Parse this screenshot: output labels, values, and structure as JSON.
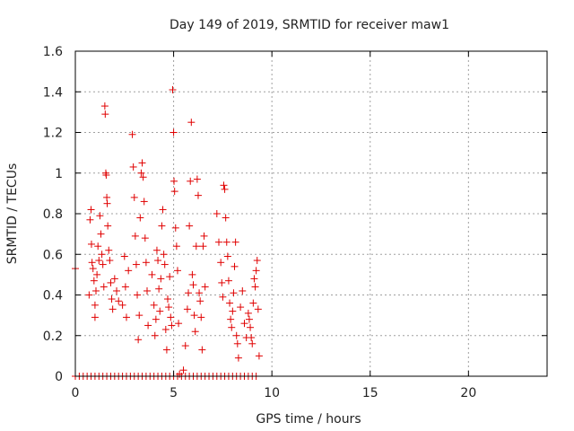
{
  "chart_data": {
    "type": "scatter",
    "title": "Day 149 of 2019, SRMTID for receiver maw1",
    "xlabel": "GPS time / hours",
    "ylabel": "SRMTID / TECUs",
    "xlim": [
      0,
      24
    ],
    "ylim": [
      0,
      1.6
    ],
    "xticks": [
      0,
      5,
      10,
      15,
      20
    ],
    "yticks": [
      0,
      0.2,
      0.4,
      0.6,
      0.8,
      1,
      1.2,
      1.4,
      1.6
    ],
    "xtick_labels": [
      "0",
      "5",
      "10",
      "15",
      "20"
    ],
    "ytick_labels": [
      "0",
      "0.2",
      "0.4",
      "0.6",
      "0.8",
      "1",
      "1.2",
      "1.4",
      "1.6"
    ],
    "grid": true,
    "marker": "+",
    "color": "#e00000",
    "series": [
      {
        "points": [
          [
            0.0,
            0.53
          ],
          [
            0.7,
            0.4
          ],
          [
            0.75,
            0.77
          ],
          [
            0.8,
            0.82
          ],
          [
            0.82,
            0.65
          ],
          [
            0.85,
            0.56
          ],
          [
            0.9,
            0.53
          ],
          [
            0.95,
            0.47
          ],
          [
            1.0,
            0.29
          ],
          [
            1.0,
            0.35
          ],
          [
            1.05,
            0.42
          ],
          [
            1.1,
            0.5
          ],
          [
            1.15,
            0.64
          ],
          [
            1.2,
            0.57
          ],
          [
            1.25,
            0.79
          ],
          [
            1.3,
            0.7
          ],
          [
            1.35,
            0.6
          ],
          [
            1.4,
            0.55
          ],
          [
            1.45,
            0.44
          ],
          [
            1.5,
            1.33
          ],
          [
            1.52,
            1.29
          ],
          [
            1.55,
            1.0
          ],
          [
            1.57,
            0.99
          ],
          [
            1.6,
            0.88
          ],
          [
            1.62,
            0.85
          ],
          [
            1.65,
            0.74
          ],
          [
            1.7,
            0.62
          ],
          [
            1.75,
            0.57
          ],
          [
            1.8,
            0.46
          ],
          [
            1.85,
            0.38
          ],
          [
            1.9,
            0.33
          ],
          [
            2.0,
            0.48
          ],
          [
            2.1,
            0.42
          ],
          [
            2.2,
            0.37
          ],
          [
            2.4,
            0.35
          ],
          [
            2.5,
            0.59
          ],
          [
            2.55,
            0.44
          ],
          [
            2.6,
            0.29
          ],
          [
            2.7,
            0.52
          ],
          [
            2.9,
            1.19
          ],
          [
            2.95,
            1.03
          ],
          [
            3.0,
            0.88
          ],
          [
            3.05,
            0.69
          ],
          [
            3.1,
            0.55
          ],
          [
            3.15,
            0.4
          ],
          [
            3.2,
            0.18
          ],
          [
            3.25,
            0.3
          ],
          [
            3.3,
            0.78
          ],
          [
            3.35,
            1.0
          ],
          [
            3.4,
            1.05
          ],
          [
            3.45,
            0.98
          ],
          [
            3.5,
            0.86
          ],
          [
            3.55,
            0.68
          ],
          [
            3.6,
            0.56
          ],
          [
            3.65,
            0.42
          ],
          [
            3.7,
            0.25
          ],
          [
            3.9,
            0.5
          ],
          [
            4.0,
            0.35
          ],
          [
            4.05,
            0.2
          ],
          [
            4.1,
            0.28
          ],
          [
            4.15,
            0.62
          ],
          [
            4.2,
            0.57
          ],
          [
            4.25,
            0.43
          ],
          [
            4.3,
            0.32
          ],
          [
            4.35,
            0.48
          ],
          [
            4.4,
            0.74
          ],
          [
            4.45,
            0.82
          ],
          [
            4.5,
            0.6
          ],
          [
            4.55,
            0.55
          ],
          [
            4.6,
            0.23
          ],
          [
            4.65,
            0.13
          ],
          [
            4.7,
            0.38
          ],
          [
            4.75,
            0.34
          ],
          [
            4.8,
            0.49
          ],
          [
            4.85,
            0.29
          ],
          [
            4.9,
            0.25
          ],
          [
            4.95,
            1.41
          ],
          [
            5.0,
            1.2
          ],
          [
            5.02,
            0.96
          ],
          [
            5.05,
            0.91
          ],
          [
            5.1,
            0.73
          ],
          [
            5.15,
            0.64
          ],
          [
            5.2,
            0.52
          ],
          [
            5.25,
            0.26
          ],
          [
            5.3,
            0.01
          ],
          [
            5.5,
            0.03
          ],
          [
            5.6,
            0.15
          ],
          [
            5.7,
            0.33
          ],
          [
            5.75,
            0.41
          ],
          [
            5.8,
            0.74
          ],
          [
            5.85,
            0.96
          ],
          [
            5.9,
            1.25
          ],
          [
            5.95,
            0.5
          ],
          [
            6.0,
            0.45
          ],
          [
            6.05,
            0.3
          ],
          [
            6.1,
            0.22
          ],
          [
            6.15,
            0.64
          ],
          [
            6.2,
            0.97
          ],
          [
            6.25,
            0.89
          ],
          [
            6.3,
            0.41
          ],
          [
            6.35,
            0.37
          ],
          [
            6.4,
            0.29
          ],
          [
            6.45,
            0.13
          ],
          [
            6.5,
            0.64
          ],
          [
            6.55,
            0.69
          ],
          [
            6.6,
            0.44
          ],
          [
            7.2,
            0.8
          ],
          [
            7.3,
            0.66
          ],
          [
            7.4,
            0.56
          ],
          [
            7.45,
            0.46
          ],
          [
            7.5,
            0.39
          ],
          [
            7.55,
            0.94
          ],
          [
            7.6,
            0.92
          ],
          [
            7.65,
            0.78
          ],
          [
            7.7,
            0.66
          ],
          [
            7.75,
            0.59
          ],
          [
            7.8,
            0.47
          ],
          [
            7.85,
            0.36
          ],
          [
            7.9,
            0.28
          ],
          [
            7.95,
            0.24
          ],
          [
            8.0,
            0.32
          ],
          [
            8.05,
            0.41
          ],
          [
            8.1,
            0.54
          ],
          [
            8.15,
            0.66
          ],
          [
            8.2,
            0.2
          ],
          [
            8.25,
            0.16
          ],
          [
            8.3,
            0.09
          ],
          [
            8.4,
            0.34
          ],
          [
            8.5,
            0.42
          ],
          [
            8.6,
            0.26
          ],
          [
            8.7,
            0.19
          ],
          [
            8.8,
            0.31
          ],
          [
            8.85,
            0.28
          ],
          [
            8.9,
            0.24
          ],
          [
            8.95,
            0.19
          ],
          [
            9.0,
            0.16
          ],
          [
            9.05,
            0.36
          ],
          [
            9.1,
            0.48
          ],
          [
            9.15,
            0.44
          ],
          [
            9.2,
            0.52
          ],
          [
            9.25,
            0.57
          ],
          [
            9.3,
            0.33
          ],
          [
            9.35,
            0.1
          ]
        ]
      },
      {
        "points": [
          [
            0.0,
            0.0
          ],
          [
            0.2,
            0.0
          ],
          [
            0.4,
            0.0
          ],
          [
            0.6,
            0.0
          ],
          [
            0.8,
            0.0
          ],
          [
            1.0,
            0.0
          ],
          [
            1.2,
            0.0
          ],
          [
            1.4,
            0.0
          ],
          [
            1.6,
            0.0
          ],
          [
            1.8,
            0.0
          ],
          [
            2.0,
            0.0
          ],
          [
            2.2,
            0.0
          ],
          [
            2.4,
            0.0
          ],
          [
            2.6,
            0.0
          ],
          [
            2.8,
            0.0
          ],
          [
            3.0,
            0.0
          ],
          [
            3.2,
            0.0
          ],
          [
            3.4,
            0.0
          ],
          [
            3.6,
            0.0
          ],
          [
            3.8,
            0.0
          ],
          [
            4.0,
            0.0
          ],
          [
            4.2,
            0.0
          ],
          [
            4.4,
            0.0
          ],
          [
            4.6,
            0.0
          ],
          [
            4.8,
            0.0
          ],
          [
            5.0,
            0.0
          ],
          [
            5.2,
            0.0
          ],
          [
            5.4,
            0.0
          ],
          [
            5.6,
            0.0
          ],
          [
            5.8,
            0.0
          ],
          [
            6.0,
            0.0
          ],
          [
            6.2,
            0.0
          ],
          [
            6.4,
            0.0
          ],
          [
            6.6,
            0.0
          ],
          [
            6.8,
            0.0
          ],
          [
            7.0,
            0.0
          ],
          [
            7.2,
            0.0
          ],
          [
            7.4,
            0.0
          ],
          [
            7.6,
            0.0
          ],
          [
            7.8,
            0.0
          ],
          [
            8.0,
            0.0
          ],
          [
            8.2,
            0.0
          ],
          [
            8.4,
            0.0
          ],
          [
            8.6,
            0.0
          ],
          [
            8.8,
            0.0
          ],
          [
            9.0,
            0.0
          ],
          [
            9.2,
            0.0
          ]
        ]
      }
    ]
  }
}
